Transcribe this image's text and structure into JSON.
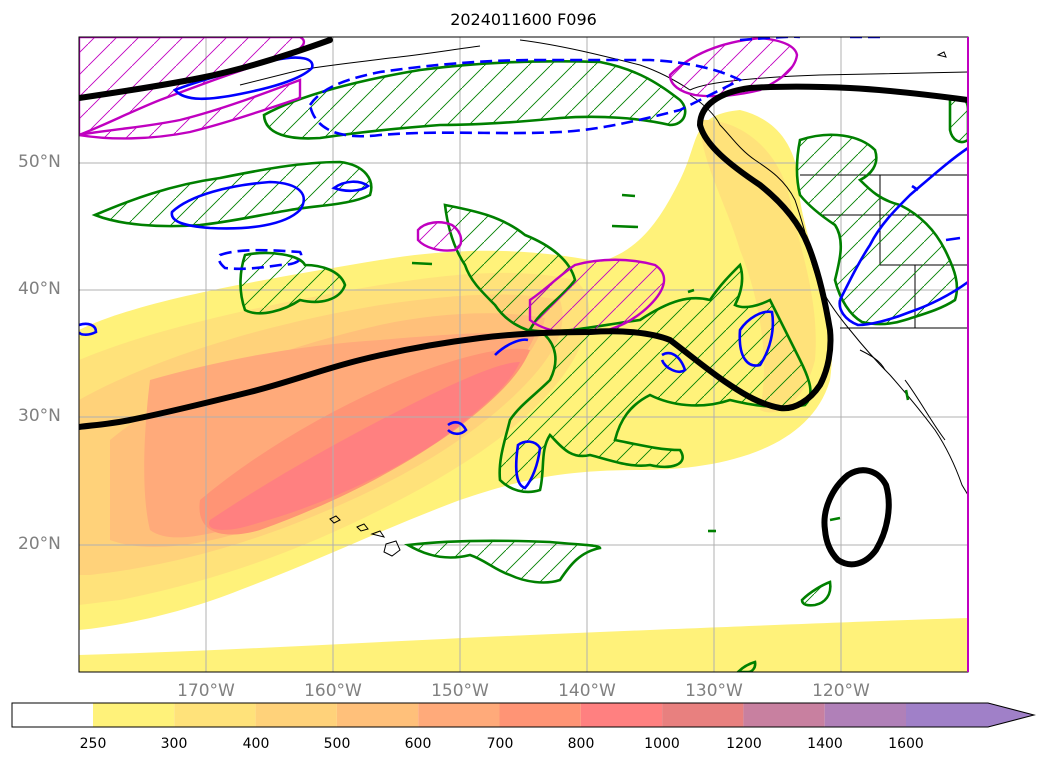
{
  "title": "2024011600 F096",
  "map": {
    "lat_labels": [
      {
        "text": "50°N",
        "lat": 50
      },
      {
        "text": "40°N",
        "lat": 40
      },
      {
        "text": "30°N",
        "lat": 30
      },
      {
        "text": "20°N",
        "lat": 20
      }
    ],
    "lon_labels": [
      {
        "text": "170°W",
        "lon": -170
      },
      {
        "text": "160°W",
        "lon": -160
      },
      {
        "text": "150°W",
        "lon": -150
      },
      {
        "text": "140°W",
        "lon": -140
      },
      {
        "text": "130°W",
        "lon": -130
      },
      {
        "text": "120°W",
        "lon": -120
      }
    ],
    "extent": {
      "lon_min": -180,
      "lon_max": -110,
      "lat_min": 10,
      "lat_max": 60
    },
    "colors": {
      "contour_green": "#008000",
      "contour_blue": "#0000ff",
      "contour_magenta": "#c000c0",
      "contour_black": "#000000",
      "grid": "#b0b0b0"
    }
  },
  "colorbar": {
    "ticks": [
      "250",
      "300",
      "400",
      "500",
      "600",
      "700",
      "800",
      "1000",
      "1200",
      "1400",
      "1600"
    ],
    "colors": [
      "#ffffff",
      "#fff27a",
      "#ffe27a",
      "#ffd27a",
      "#ffc07a",
      "#ffaa7a",
      "#ff9475",
      "#ff8080",
      "#e8807f",
      "#c880a0",
      "#b080b8",
      "#a080c8"
    ],
    "extend": "max"
  }
}
